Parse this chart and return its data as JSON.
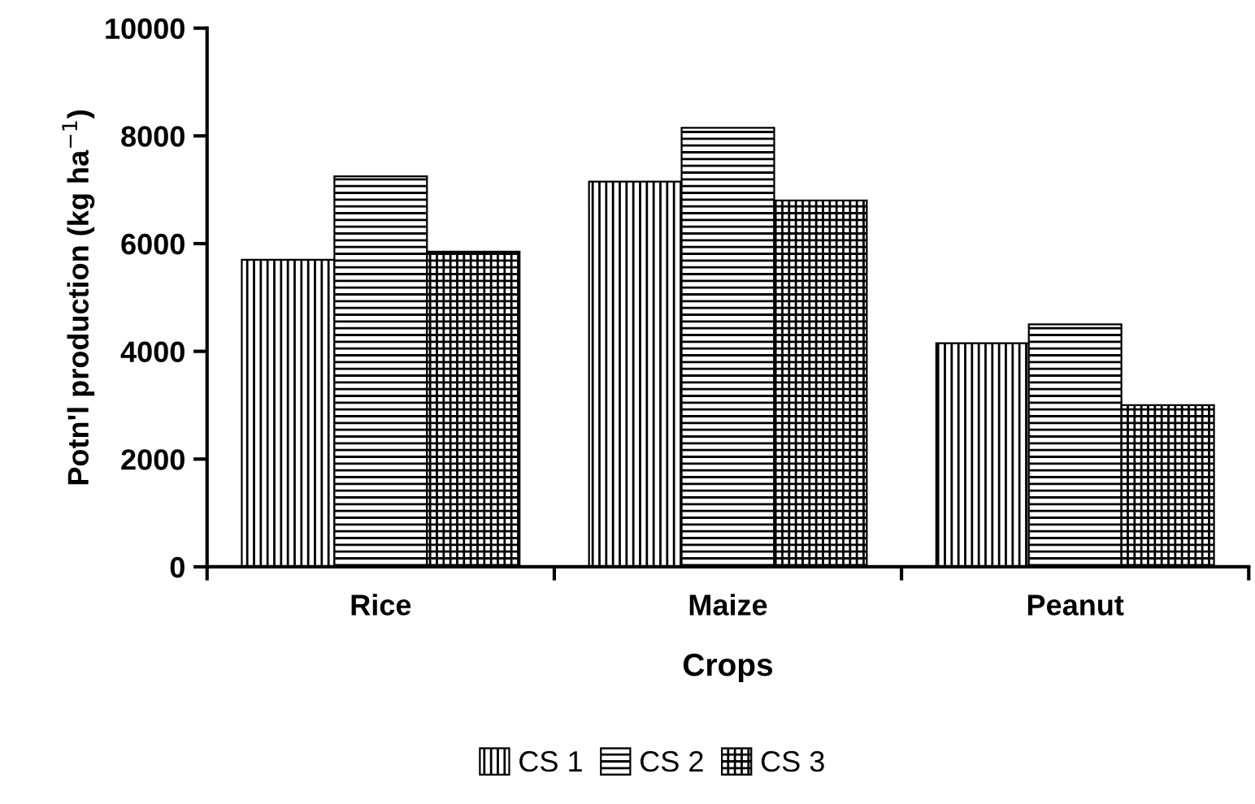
{
  "chart_data": {
    "type": "bar",
    "xlabel": "Crops",
    "ylabel": "Potn'l production (kg ha$^{−1}$)",
    "categories": [
      "Rice",
      "Maize",
      "Peanut"
    ],
    "series": [
      {
        "name": "CS 1",
        "color": "#000000",
        "values": [
          5700,
          7150,
          4150
        ]
      },
      {
        "name": "CS 2",
        "color": "#000000",
        "values": [
          7250,
          8150,
          4500
        ]
      },
      {
        "name": "CS 3",
        "color": "#000000",
        "values": [
          5850,
          6800,
          3000
        ]
      }
    ],
    "ylim": [
      0,
      10000
    ],
    "yticks": [
      0,
      2000,
      4000,
      6000,
      8000,
      10000
    ],
    "grid": false,
    "legend": "bottom"
  }
}
